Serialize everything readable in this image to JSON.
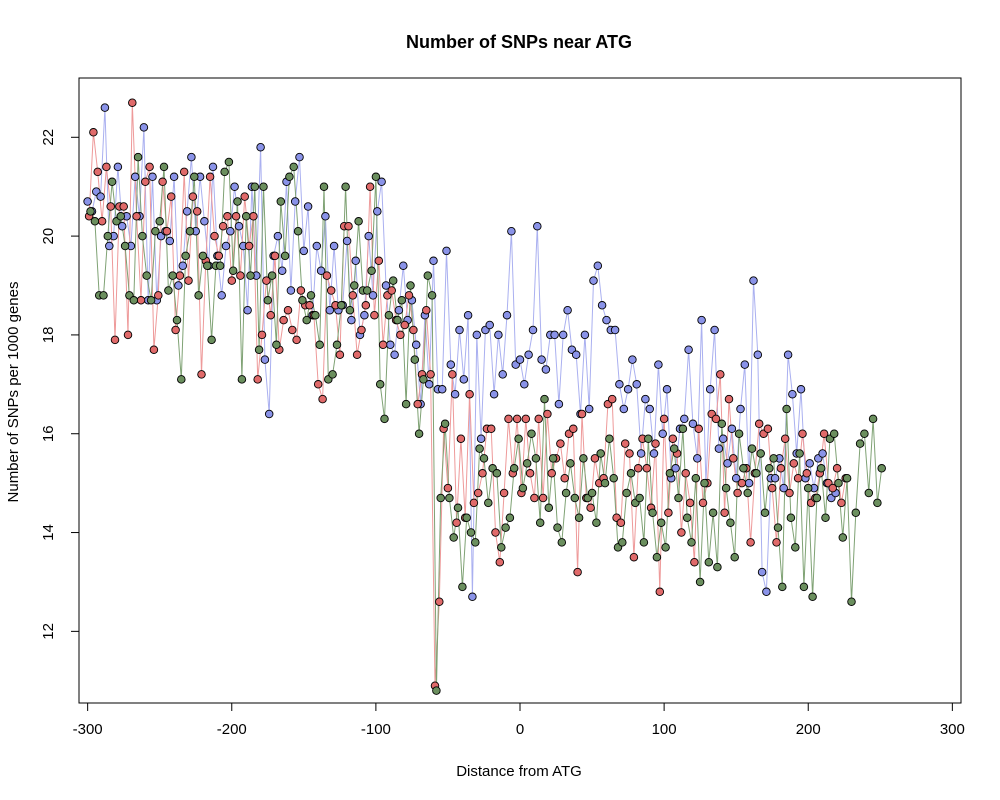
{
  "chart_data": {
    "type": "scatter",
    "title": "Number of SNPs near ATG",
    "xlabel": "Distance from ATG",
    "ylabel": "Number of SNPs per 1000 genes",
    "xlim": [
      -306,
      306
    ],
    "ylim": [
      10.55,
      23.2
    ],
    "xticks": [
      -300,
      -200,
      -100,
      0,
      100,
      200,
      300
    ],
    "yticks": [
      12,
      14,
      16,
      18,
      20,
      22
    ],
    "xtick_labels": [
      "-300",
      "-200",
      "-100",
      "0",
      "100",
      "200",
      "300"
    ],
    "ytick_labels": [
      "12",
      "14",
      "16",
      "18",
      "20",
      "22"
    ],
    "legend": "none",
    "grid": false,
    "series": [
      {
        "color": "#8a93e8",
        "line_color": "#aab0f0",
        "x_start": -300,
        "x_step": 3,
        "y": [
          20.7,
          20.5,
          20.9,
          20.8,
          22.6,
          19.8,
          20.0,
          21.4,
          20.2,
          20.4,
          19.8,
          21.2,
          20.4,
          22.2,
          18.7,
          21.2,
          18.7,
          20.0,
          20.1,
          19.9,
          21.2,
          19.0,
          19.4,
          20.5,
          21.6,
          20.1,
          21.2,
          20.3,
          19.4,
          21.4,
          19.6,
          18.8,
          19.8,
          20.1,
          21.0,
          20.2,
          19.8,
          18.5,
          21.0,
          19.2,
          21.8,
          17.5,
          16.4,
          19.6,
          20.0,
          19.3,
          21.1,
          18.9,
          20.7,
          21.6,
          19.7,
          20.6,
          18.4,
          19.8,
          19.3,
          20.4,
          18.5,
          19.8,
          18.5,
          18.6,
          19.9,
          18.3,
          19.5,
          18.0,
          18.4,
          20.0,
          18.8,
          20.5,
          21.1,
          19.0,
          17.8,
          17.6,
          18.5,
          19.4,
          18.3,
          18.7,
          17.8,
          16.6,
          18.4,
          17.0,
          19.5,
          16.9,
          16.9,
          19.7,
          17.4,
          16.8,
          18.1,
          17.1,
          18.4,
          12.7,
          18.0,
          15.9,
          18.1,
          18.2,
          16.8,
          18.0,
          17.2,
          18.4,
          20.1,
          17.4,
          17.5,
          17.0,
          17.6,
          18.1,
          20.2,
          17.5,
          17.3,
          18.0,
          18.0,
          16.6,
          18.0,
          18.5,
          17.7,
          17.6,
          16.4,
          18.0,
          16.5,
          19.1,
          19.4,
          18.6,
          18.3,
          18.1,
          18.1,
          17.0,
          16.5,
          16.9,
          17.5,
          17.0,
          15.6,
          16.7,
          16.5,
          15.6,
          17.4,
          16.0,
          16.9,
          15.1,
          15.3,
          16.1,
          16.3,
          17.7,
          16.2,
          15.5,
          18.3,
          15.0,
          16.9,
          18.1,
          15.7,
          15.9,
          15.4,
          16.1,
          15.1,
          16.5,
          17.4,
          15.0,
          19.1,
          17.6,
          13.2,
          12.8,
          15.1,
          15.1,
          15.5,
          14.9,
          17.6,
          16.8,
          15.6,
          16.9,
          15.1,
          15.4,
          14.9,
          15.5,
          15.6,
          15.0,
          14.7,
          14.8
        ]
      },
      {
        "color": "#e06a6a",
        "line_color": "#ee9a9a",
        "x_start": -299,
        "x_step": 3,
        "y": [
          20.4,
          22.1,
          21.3,
          20.3,
          21.4,
          20.6,
          17.9,
          20.6,
          20.6,
          18.0,
          22.7,
          20.4,
          18.7,
          21.1,
          21.4,
          17.7,
          18.8,
          21.1,
          20.1,
          20.8,
          18.1,
          19.2,
          21.3,
          19.1,
          20.8,
          20.5,
          17.2,
          19.5,
          21.2,
          20.0,
          19.6,
          20.2,
          20.4,
          19.1,
          20.4,
          19.2,
          20.8,
          19.8,
          20.4,
          17.1,
          18.0,
          19.1,
          18.4,
          19.6,
          17.7,
          18.3,
          18.5,
          18.1,
          17.9,
          18.9,
          18.6,
          18.6,
          18.4,
          17.0,
          16.7,
          19.2,
          18.9,
          18.6,
          17.6,
          20.2,
          20.2,
          18.8,
          17.6,
          18.1,
          18.6,
          21.0,
          18.4,
          19.5,
          17.8,
          18.8,
          18.9,
          18.3,
          18.0,
          18.2,
          18.8,
          18.1,
          16.6,
          17.2,
          18.5,
          17.2,
          10.9,
          12.6,
          16.1,
          14.9,
          17.2,
          14.2,
          15.9,
          14.3,
          16.8,
          14.6,
          14.8,
          15.2,
          16.1,
          16.1,
          14.0,
          13.4,
          14.8,
          16.3,
          15.2,
          16.3,
          14.8,
          16.3,
          15.2,
          14.7,
          16.3,
          14.7,
          16.4,
          15.2,
          15.5,
          15.8,
          15.1,
          16.0,
          16.1,
          13.2,
          16.4,
          14.7,
          14.5,
          15.5,
          15.0,
          15.1,
          16.6,
          16.7,
          14.3,
          14.2,
          15.8,
          15.6,
          13.5,
          15.3,
          15.9,
          15.3,
          14.5,
          15.8,
          12.8,
          16.3,
          14.4,
          15.9,
          15.6,
          14.0,
          15.2,
          14.6,
          13.4,
          16.1,
          14.6,
          15.0,
          16.4,
          16.3,
          17.2,
          14.4,
          16.7,
          15.5,
          14.8,
          15.0,
          15.3,
          13.8,
          15.2,
          16.2,
          16.0,
          16.1,
          14.9,
          13.8,
          15.3,
          15.9,
          14.8,
          15.4,
          15.1,
          16.0,
          15.2,
          14.6,
          14.7,
          15.2,
          16.0,
          15.0,
          14.9,
          15.3,
          14.6,
          15.1
        ]
      },
      {
        "color": "#6b8f5e",
        "line_color": "#7fa274",
        "x_start": -298,
        "x_step": 3,
        "y": [
          20.5,
          20.3,
          18.8,
          18.8,
          20.0,
          21.1,
          20.3,
          20.4,
          19.8,
          18.8,
          18.7,
          21.6,
          20.0,
          19.2,
          18.7,
          20.1,
          20.3,
          21.4,
          18.9,
          19.2,
          18.3,
          17.1,
          19.6,
          20.1,
          21.2,
          18.8,
          19.6,
          19.4,
          17.9,
          19.4,
          19.4,
          21.3,
          21.5,
          19.3,
          20.7,
          17.1,
          20.4,
          19.2,
          21.0,
          17.7,
          21.0,
          18.7,
          19.2,
          17.8,
          20.7,
          19.6,
          21.2,
          21.4,
          20.1,
          18.7,
          18.3,
          18.8,
          18.4,
          17.8,
          21.0,
          17.1,
          17.2,
          17.8,
          18.6,
          21.0,
          18.5,
          19.0,
          20.3,
          18.9,
          18.9,
          19.3,
          21.2,
          17.0,
          16.3,
          18.4,
          19.1,
          18.3,
          18.7,
          16.6,
          19.0,
          17.5,
          16.0,
          17.1,
          19.2,
          18.8,
          10.8,
          14.7,
          16.2,
          14.7,
          13.9,
          14.5,
          12.9,
          14.3,
          14.0,
          13.8,
          15.7,
          15.5,
          14.6,
          15.3,
          15.2,
          13.7,
          14.1,
          14.3,
          15.3,
          15.9,
          14.9,
          15.4,
          16.0,
          15.5,
          14.2,
          16.7,
          14.5,
          15.5,
          14.1,
          13.8,
          14.8,
          15.4,
          14.7,
          14.3,
          15.5,
          14.7,
          14.8,
          14.2,
          15.6,
          15.0,
          15.9,
          15.1,
          13.7,
          13.8,
          14.8,
          15.2,
          14.6,
          14.7,
          13.8,
          15.9,
          14.4,
          13.5,
          14.2,
          13.7,
          15.2,
          15.7,
          14.7,
          16.1,
          14.3,
          13.8,
          15.1,
          13.0,
          15.0,
          13.4,
          14.4,
          13.3,
          16.2,
          14.9,
          14.2,
          13.5,
          16.0,
          15.3,
          14.8,
          15.7,
          15.2,
          15.6,
          14.4,
          15.3,
          15.5,
          14.1,
          12.9,
          16.5,
          14.3,
          13.7,
          15.6,
          12.9,
          14.9,
          12.7,
          14.7,
          15.3,
          14.3,
          15.9,
          16.0,
          15.0,
          13.9,
          15.1,
          12.6,
          14.4,
          15.8,
          16.0,
          14.8,
          16.3,
          14.6,
          15.3
        ]
      }
    ]
  }
}
